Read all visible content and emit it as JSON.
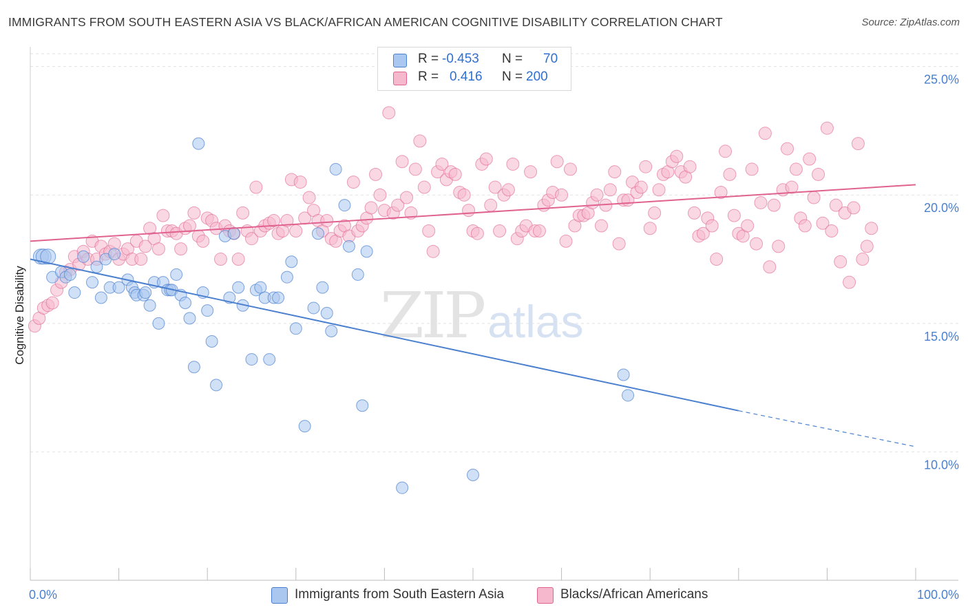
{
  "title": "IMMIGRANTS FROM SOUTH EASTERN ASIA VS BLACK/AFRICAN AMERICAN COGNITIVE DISABILITY CORRELATION CHART",
  "source": "Source: ZipAtlas.com",
  "watermark": {
    "zip": "ZIP",
    "atlas": "atlas"
  },
  "colors": {
    "blue": "#4a80cf",
    "blue_fill": "#a9c7ef",
    "pink": "#e0628f",
    "pink_fill": "#f5b8cc",
    "grid": "#e2e2e2"
  },
  "legend": {
    "r1_label": "R =",
    "r1_value": "-0.453",
    "n1_label": "N =",
    "n1_value": "70",
    "r2_label": "R =",
    "r2_value": "0.416",
    "n2_label": "N =",
    "n2_value": "200"
  },
  "bottom_legend": {
    "series1": "Immigrants from South Eastern Asia",
    "series2": "Blacks/African Americans"
  },
  "chart_data": {
    "type": "scatter",
    "title": "IMMIGRANTS FROM SOUTH EASTERN ASIA VS BLACK/AFRICAN AMERICAN COGNITIVE DISABILITY CORRELATION CHART",
    "xlabel": "",
    "ylabel": "Cognitive Disability",
    "xlim": [
      0,
      100
    ],
    "ylim": [
      5,
      25.5
    ],
    "x_ticks": [
      "0.0%",
      "100.0%"
    ],
    "y_ticks": [
      {
        "value": 10,
        "label": "10.0%"
      },
      {
        "value": 15,
        "label": "15.0%"
      },
      {
        "value": 20,
        "label": "20.0%"
      },
      {
        "value": 25,
        "label": "25.0%"
      }
    ],
    "series": [
      {
        "name": "Immigrants from South Eastern Asia",
        "color": "#4a80cf",
        "R": -0.453,
        "N": 70,
        "trend": {
          "x0": 0,
          "y0": 17.5,
          "x1": 80,
          "y1": 11.6,
          "dash_to_x": 100,
          "dash_to_y": 10.2
        },
        "points": [
          [
            1.2,
            17.6
          ],
          [
            1.5,
            17.6
          ],
          [
            2.0,
            17.6
          ],
          [
            2.5,
            16.8
          ],
          [
            3.5,
            17.0
          ],
          [
            4.0,
            16.8
          ],
          [
            4.5,
            16.9
          ],
          [
            5.0,
            16.2
          ],
          [
            6.0,
            17.6
          ],
          [
            7.0,
            16.6
          ],
          [
            7.5,
            17.2
          ],
          [
            8.0,
            16.0
          ],
          [
            8.5,
            17.5
          ],
          [
            9.0,
            16.4
          ],
          [
            9.5,
            17.7
          ],
          [
            10.0,
            16.4
          ],
          [
            11.0,
            16.7
          ],
          [
            11.5,
            16.4
          ],
          [
            11.8,
            16.2
          ],
          [
            12.0,
            16.1
          ],
          [
            12.8,
            16.1
          ],
          [
            13.0,
            16.2
          ],
          [
            13.5,
            15.7
          ],
          [
            14.0,
            16.6
          ],
          [
            14.5,
            15.0
          ],
          [
            15.0,
            16.6
          ],
          [
            15.5,
            16.3
          ],
          [
            15.8,
            16.3
          ],
          [
            16.0,
            16.3
          ],
          [
            16.5,
            16.9
          ],
          [
            17.0,
            16.1
          ],
          [
            17.5,
            15.8
          ],
          [
            18.0,
            15.2
          ],
          [
            18.5,
            13.3
          ],
          [
            19.0,
            22.0
          ],
          [
            19.5,
            16.2
          ],
          [
            20.0,
            15.5
          ],
          [
            20.5,
            14.3
          ],
          [
            21.0,
            12.6
          ],
          [
            22.0,
            18.4
          ],
          [
            22.5,
            16.0
          ],
          [
            23.0,
            18.5
          ],
          [
            23.5,
            16.4
          ],
          [
            24.0,
            15.7
          ],
          [
            25.0,
            13.6
          ],
          [
            25.5,
            16.3
          ],
          [
            26.0,
            16.4
          ],
          [
            26.5,
            16.0
          ],
          [
            27.0,
            13.6
          ],
          [
            27.5,
            16.0
          ],
          [
            28.0,
            16.0
          ],
          [
            29.0,
            16.8
          ],
          [
            29.5,
            17.4
          ],
          [
            30.0,
            14.8
          ],
          [
            31.0,
            11.0
          ],
          [
            32.0,
            15.6
          ],
          [
            32.5,
            18.5
          ],
          [
            33.0,
            16.4
          ],
          [
            33.5,
            15.4
          ],
          [
            34.0,
            14.7
          ],
          [
            34.5,
            21.0
          ],
          [
            35.5,
            19.6
          ],
          [
            36.0,
            18.0
          ],
          [
            37.0,
            16.9
          ],
          [
            37.5,
            11.8
          ],
          [
            38.0,
            17.8
          ],
          [
            42.0,
            8.6
          ],
          [
            50.0,
            9.1
          ],
          [
            67.0,
            13.0
          ],
          [
            67.5,
            12.2
          ]
        ]
      },
      {
        "name": "Blacks/African Americans",
        "color": "#e0628f",
        "R": 0.416,
        "N": 200,
        "trend": {
          "x0": 0,
          "y0": 18.2,
          "x1": 100,
          "y1": 20.4
        },
        "points": [
          [
            0.5,
            14.9
          ],
          [
            1.0,
            15.2
          ],
          [
            1.5,
            15.6
          ],
          [
            2.0,
            15.7
          ],
          [
            2.5,
            15.8
          ],
          [
            3.0,
            16.3
          ],
          [
            3.5,
            16.6
          ],
          [
            4.0,
            17.0
          ],
          [
            4.5,
            17.1
          ],
          [
            5.0,
            17.6
          ],
          [
            5.5,
            17.3
          ],
          [
            6.0,
            17.8
          ],
          [
            6.5,
            17.5
          ],
          [
            7.0,
            18.2
          ],
          [
            7.5,
            17.5
          ],
          [
            8.0,
            18.0
          ],
          [
            8.5,
            17.7
          ],
          [
            9.0,
            17.8
          ],
          [
            9.5,
            18.1
          ],
          [
            10.0,
            17.5
          ],
          [
            10.5,
            17.7
          ],
          [
            11.0,
            17.9
          ],
          [
            11.5,
            17.5
          ],
          [
            12.0,
            18.2
          ],
          [
            12.5,
            17.5
          ],
          [
            13.0,
            18.0
          ],
          [
            13.5,
            18.7
          ],
          [
            14.0,
            18.3
          ],
          [
            14.5,
            17.9
          ],
          [
            15.0,
            19.2
          ],
          [
            15.5,
            18.6
          ],
          [
            16.0,
            18.6
          ],
          [
            16.5,
            18.5
          ],
          [
            17.0,
            17.9
          ],
          [
            17.5,
            18.7
          ],
          [
            18.0,
            18.8
          ],
          [
            18.5,
            19.3
          ],
          [
            19.0,
            18.4
          ],
          [
            19.5,
            18.2
          ],
          [
            20.0,
            19.1
          ],
          [
            20.5,
            19.0
          ],
          [
            21.0,
            18.7
          ],
          [
            21.5,
            17.5
          ],
          [
            22.0,
            18.8
          ],
          [
            22.5,
            18.6
          ],
          [
            23.0,
            18.5
          ],
          [
            23.5,
            17.5
          ],
          [
            24.0,
            19.3
          ],
          [
            24.5,
            18.6
          ],
          [
            25.0,
            18.3
          ],
          [
            25.5,
            20.3
          ],
          [
            26.0,
            18.6
          ],
          [
            26.5,
            18.8
          ],
          [
            27.0,
            18.9
          ],
          [
            27.5,
            19.0
          ],
          [
            28.0,
            18.5
          ],
          [
            28.5,
            18.6
          ],
          [
            29.0,
            19.0
          ],
          [
            29.5,
            20.6
          ],
          [
            30.0,
            18.6
          ],
          [
            30.5,
            20.5
          ],
          [
            31.0,
            19.1
          ],
          [
            31.5,
            19.9
          ],
          [
            32.0,
            19.4
          ],
          [
            32.5,
            19.0
          ],
          [
            33.0,
            18.6
          ],
          [
            33.5,
            19.0
          ],
          [
            34.0,
            18.3
          ],
          [
            34.5,
            18.2
          ],
          [
            35.0,
            18.6
          ],
          [
            35.5,
            18.8
          ],
          [
            36.0,
            18.4
          ],
          [
            36.5,
            20.5
          ],
          [
            37.0,
            18.6
          ],
          [
            37.5,
            18.8
          ],
          [
            38.0,
            19.1
          ],
          [
            38.5,
            19.5
          ],
          [
            39.0,
            20.8
          ],
          [
            39.5,
            20.0
          ],
          [
            40.0,
            19.4
          ],
          [
            40.5,
            23.2
          ],
          [
            41.0,
            19.3
          ],
          [
            41.5,
            19.6
          ],
          [
            42.0,
            21.3
          ],
          [
            42.5,
            19.9
          ],
          [
            43.0,
            19.3
          ],
          [
            43.5,
            21.0
          ],
          [
            44.0,
            22.1
          ],
          [
            44.5,
            20.3
          ],
          [
            45.0,
            18.6
          ],
          [
            45.5,
            17.8
          ],
          [
            46.0,
            20.9
          ],
          [
            46.5,
            21.2
          ],
          [
            47.0,
            20.6
          ],
          [
            47.5,
            20.9
          ],
          [
            48.0,
            20.8
          ],
          [
            48.5,
            20.1
          ],
          [
            49.0,
            20.0
          ],
          [
            49.5,
            19.4
          ],
          [
            50.0,
            18.6
          ],
          [
            50.5,
            18.5
          ],
          [
            51.0,
            21.2
          ],
          [
            51.5,
            21.4
          ],
          [
            52.0,
            19.6
          ],
          [
            52.5,
            20.3
          ],
          [
            53.0,
            18.6
          ],
          [
            53.5,
            20.0
          ],
          [
            54.0,
            20.2
          ],
          [
            54.5,
            21.2
          ],
          [
            55.0,
            18.3
          ],
          [
            55.5,
            18.6
          ],
          [
            56.0,
            18.8
          ],
          [
            56.5,
            20.9
          ],
          [
            57.0,
            18.6
          ],
          [
            57.5,
            18.6
          ],
          [
            58.0,
            19.6
          ],
          [
            58.5,
            19.8
          ],
          [
            59.0,
            20.1
          ],
          [
            59.5,
            21.3
          ],
          [
            60.0,
            20.0
          ],
          [
            60.5,
            18.2
          ],
          [
            61.0,
            21.0
          ],
          [
            61.5,
            18.8
          ],
          [
            62.0,
            19.2
          ],
          [
            62.5,
            19.2
          ],
          [
            63.0,
            19.3
          ],
          [
            63.5,
            19.7
          ],
          [
            64.0,
            20.0
          ],
          [
            64.5,
            18.8
          ],
          [
            65.0,
            19.6
          ],
          [
            65.5,
            20.2
          ],
          [
            66.0,
            20.9
          ],
          [
            66.5,
            18.1
          ],
          [
            67.0,
            19.8
          ],
          [
            67.5,
            19.8
          ],
          [
            68.0,
            20.5
          ],
          [
            68.5,
            20.1
          ],
          [
            69.0,
            20.3
          ],
          [
            69.5,
            21.1
          ],
          [
            70.0,
            18.7
          ],
          [
            70.5,
            19.3
          ],
          [
            71.0,
            20.2
          ],
          [
            71.5,
            20.8
          ],
          [
            72.0,
            20.9
          ],
          [
            72.5,
            21.3
          ],
          [
            73.0,
            21.5
          ],
          [
            73.5,
            20.9
          ],
          [
            74.0,
            20.7
          ],
          [
            74.5,
            21.1
          ],
          [
            75.0,
            19.3
          ],
          [
            75.5,
            18.4
          ],
          [
            76.0,
            18.5
          ],
          [
            76.5,
            19.1
          ],
          [
            77.0,
            18.8
          ],
          [
            77.5,
            17.5
          ],
          [
            78.0,
            20.1
          ],
          [
            78.5,
            21.7
          ],
          [
            79.0,
            20.8
          ],
          [
            79.5,
            19.2
          ],
          [
            80.0,
            18.5
          ],
          [
            80.5,
            18.4
          ],
          [
            81.0,
            18.8
          ],
          [
            81.5,
            21.0
          ],
          [
            82.0,
            18.1
          ],
          [
            82.5,
            19.7
          ],
          [
            83.0,
            22.4
          ],
          [
            83.5,
            17.2
          ],
          [
            84.0,
            19.6
          ],
          [
            84.5,
            18.0
          ],
          [
            85.0,
            20.2
          ],
          [
            85.5,
            21.8
          ],
          [
            86.0,
            20.3
          ],
          [
            86.5,
            21.0
          ],
          [
            87.0,
            19.1
          ],
          [
            87.5,
            18.8
          ],
          [
            88.0,
            21.4
          ],
          [
            88.5,
            19.9
          ],
          [
            89.0,
            20.8
          ],
          [
            89.5,
            18.9
          ],
          [
            90.0,
            22.6
          ],
          [
            90.5,
            18.6
          ],
          [
            91.0,
            19.6
          ],
          [
            91.5,
            17.4
          ],
          [
            92.0,
            19.3
          ],
          [
            92.5,
            16.6
          ],
          [
            93.0,
            19.5
          ],
          [
            93.5,
            22.0
          ],
          [
            94.0,
            17.5
          ],
          [
            94.5,
            18.0
          ],
          [
            95.0,
            18.7
          ]
        ]
      }
    ]
  }
}
